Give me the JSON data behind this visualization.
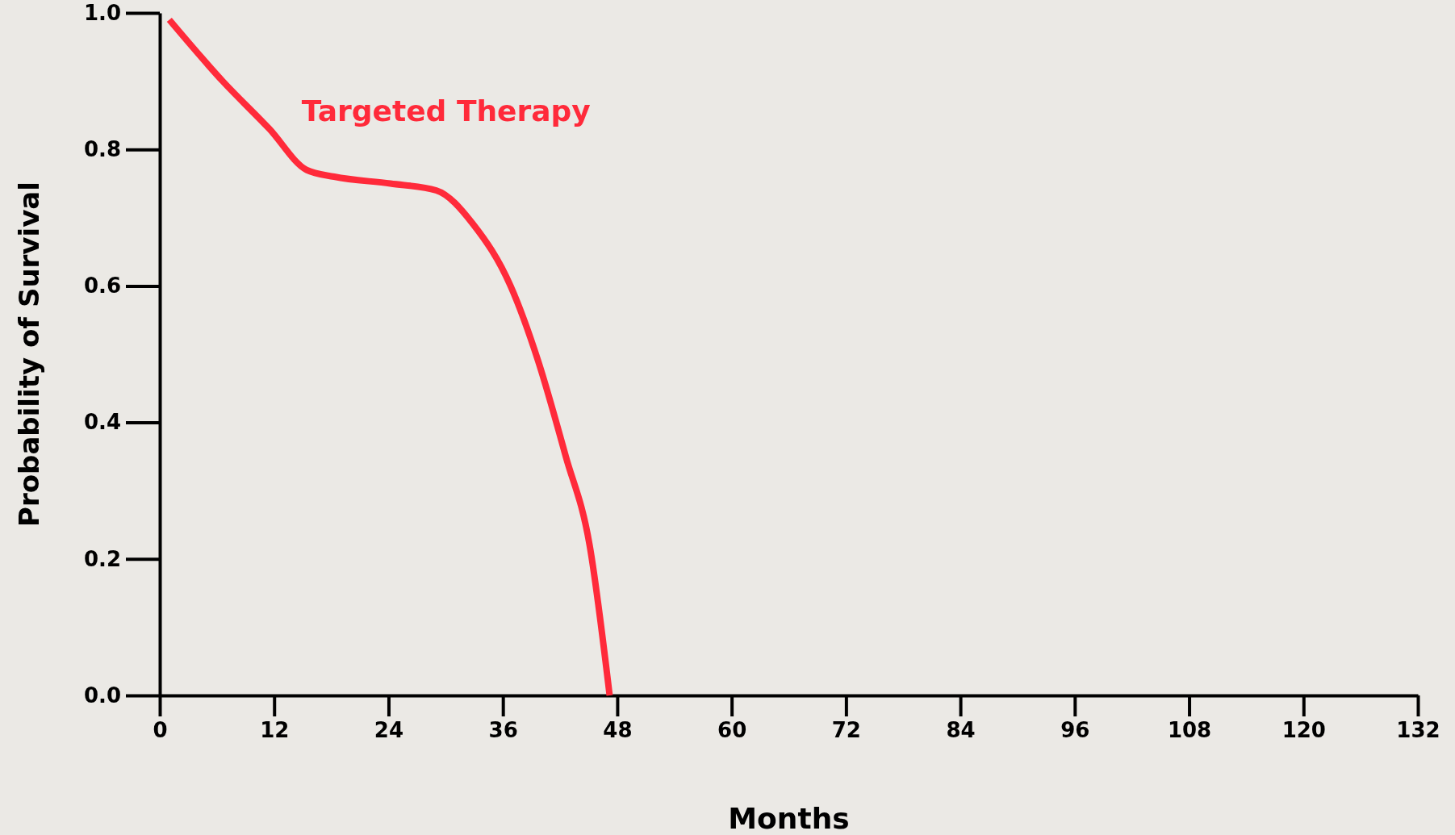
{
  "chart_data": {
    "type": "line",
    "xlabel": "Months",
    "ylabel": "Probability of Survival",
    "xlim": [
      0,
      132
    ],
    "xticks": [
      0,
      12,
      24,
      36,
      48,
      60,
      72,
      84,
      96,
      108,
      120,
      132
    ],
    "ylim": [
      0,
      1
    ],
    "yticks": [
      {
        "value": 0,
        "label": "0.0"
      },
      0.2,
      0.4,
      0.6,
      0.8,
      {
        "value": 1,
        "label": "1.0"
      }
    ],
    "grid": false,
    "legend": false,
    "marker": "none",
    "line_style": "solid",
    "series": [
      {
        "name": "Targeted Therapy",
        "color": "#ff2a3a",
        "x": [
          1,
          6.6,
          11.5,
          15.4,
          18.3,
          24.2,
          29,
          32.9,
          36.8,
          39.7,
          42.6,
          45.1,
          47.2
        ],
        "values": [
          0.99,
          0.9,
          0.83,
          0.77,
          0.76,
          0.75,
          0.74,
          0.69,
          0.6,
          0.49,
          0.35,
          0.22,
          0
        ]
      }
    ]
  }
}
